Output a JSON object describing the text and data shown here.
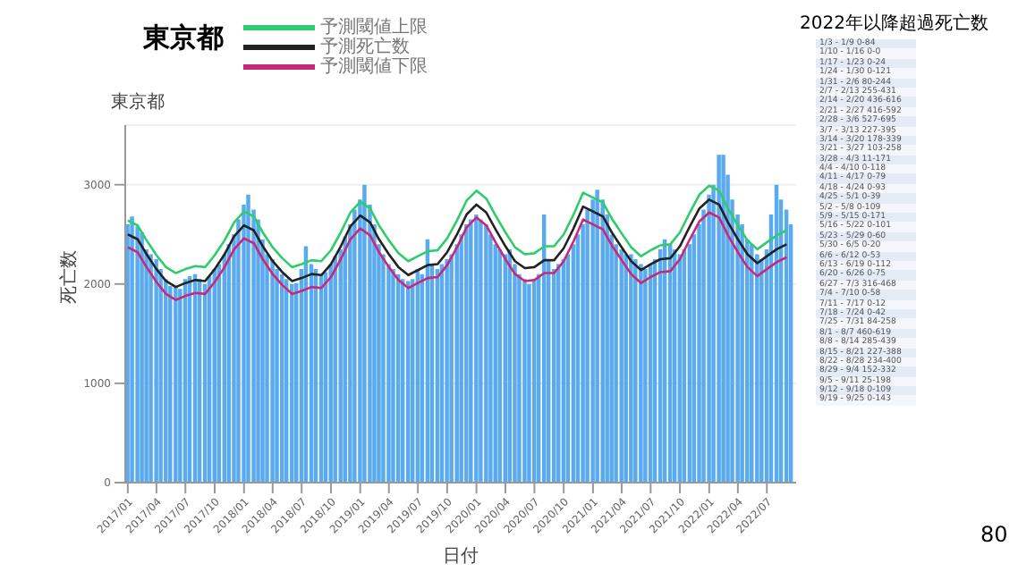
{
  "chart_data": {
    "type": "bar",
    "title": "東京都",
    "subtitle": "東京都",
    "xlabel": "日付",
    "ylabel": "死亡数",
    "xlim": [
      "2016-12-24",
      "2022-10-01"
    ],
    "xticks": [
      {
        "value": "2017-01-01",
        "label": "2017/01"
      },
      {
        "value": "2017-04-01",
        "label": "2017/04"
      },
      {
        "value": "2017-07-01",
        "label": "2017/07"
      },
      {
        "value": "2017-10-01",
        "label": "2017/10"
      },
      {
        "value": "2018-01-01",
        "label": "2018/01"
      },
      {
        "value": "2018-04-01",
        "label": "2018/04"
      },
      {
        "value": "2018-07-01",
        "label": "2018/07"
      },
      {
        "value": "2018-10-01",
        "label": "2018/10"
      },
      {
        "value": "2019-01-01",
        "label": "2019/01"
      },
      {
        "value": "2019-04-01",
        "label": "2019/04"
      },
      {
        "value": "2019-07-01",
        "label": "2019/07"
      },
      {
        "value": "2019-10-01",
        "label": "2019/10"
      },
      {
        "value": "2020-01-01",
        "label": "2020/01"
      },
      {
        "value": "2020-04-01",
        "label": "2020/04"
      },
      {
        "value": "2020-07-01",
        "label": "2020/07"
      },
      {
        "value": "2020-10-01",
        "label": "2020/10"
      },
      {
        "value": "2021-01-01",
        "label": "2021/01"
      },
      {
        "value": "2021-04-01",
        "label": "2021/04"
      },
      {
        "value": "2021-07-01",
        "label": "2021/07"
      },
      {
        "value": "2021-10-01",
        "label": "2021/10"
      },
      {
        "value": "2022-01-01",
        "label": "2022/01"
      },
      {
        "value": "2022-04-01",
        "label": "2022/04"
      },
      {
        "value": "2022-07-01",
        "label": "2022/07"
      }
    ],
    "ylim": [
      0,
      3600
    ],
    "yticks": [
      0,
      1000,
      2000,
      3000
    ],
    "grid": "y",
    "legend": "top left",
    "series": [
      {
        "color": "#5aaaee",
        "x": [
          "2017-01-01",
          "2017-01-15",
          "2017-02-01",
          "2017-02-15",
          "2017-03-01",
          "2017-03-15",
          "2017-04-01",
          "2017-04-15",
          "2017-05-01",
          "2017-05-15",
          "2017-06-01",
          "2017-06-15",
          "2017-07-01",
          "2017-07-15",
          "2017-08-01",
          "2017-08-15",
          "2017-09-01",
          "2017-09-15",
          "2017-10-01",
          "2017-10-15",
          "2017-11-01",
          "2017-11-15",
          "2017-12-01",
          "2017-12-15",
          "2018-01-01",
          "2018-01-15",
          "2018-02-01",
          "2018-02-15",
          "2018-03-01",
          "2018-03-15",
          "2018-04-01",
          "2018-04-15",
          "2018-05-01",
          "2018-05-15",
          "2018-06-01",
          "2018-06-15",
          "2018-07-01",
          "2018-07-15",
          "2018-08-01",
          "2018-08-15",
          "2018-09-01",
          "2018-09-15",
          "2018-10-01",
          "2018-10-15",
          "2018-11-01",
          "2018-11-15",
          "2018-12-01",
          "2018-12-15",
          "2019-01-01",
          "2019-01-15",
          "2019-02-01",
          "2019-02-15",
          "2019-03-01",
          "2019-03-15",
          "2019-04-01",
          "2019-04-15",
          "2019-05-01",
          "2019-05-15",
          "2019-06-01",
          "2019-06-15",
          "2019-07-01",
          "2019-07-15",
          "2019-08-01",
          "2019-08-15",
          "2019-09-01",
          "2019-09-15",
          "2019-10-01",
          "2019-10-15",
          "2019-11-01",
          "2019-11-15",
          "2019-12-01",
          "2019-12-15",
          "2020-01-01",
          "2020-01-15",
          "2020-02-01",
          "2020-02-15",
          "2020-03-01",
          "2020-03-15",
          "2020-04-01",
          "2020-04-15",
          "2020-05-01",
          "2020-05-15",
          "2020-06-01",
          "2020-06-15",
          "2020-07-01",
          "2020-07-15",
          "2020-08-01",
          "2020-08-15",
          "2020-09-01",
          "2020-09-15",
          "2020-10-01",
          "2020-10-15",
          "2020-11-01",
          "2020-11-15",
          "2020-12-01",
          "2020-12-15",
          "2021-01-01",
          "2021-01-15",
          "2021-02-01",
          "2021-02-15",
          "2021-03-01",
          "2021-03-15",
          "2021-04-01",
          "2021-04-15",
          "2021-05-01",
          "2021-05-15",
          "2021-06-01",
          "2021-06-15",
          "2021-07-01",
          "2021-07-15",
          "2021-08-01",
          "2021-08-15",
          "2021-09-01",
          "2021-09-15",
          "2021-10-01",
          "2021-10-15",
          "2021-11-01",
          "2021-11-15",
          "2021-12-01",
          "2021-12-15",
          "2022-01-01",
          "2022-01-15",
          "2022-02-01",
          "2022-02-15",
          "2022-03-01",
          "2022-03-15",
          "2022-04-01",
          "2022-04-15",
          "2022-05-01",
          "2022-05-15",
          "2022-06-01",
          "2022-06-15",
          "2022-07-01",
          "2022-07-15",
          "2022-08-01",
          "2022-08-15",
          "2022-09-01",
          "2022-09-15"
        ],
        "values": [
          2600,
          2680,
          2580,
          2520,
          2350,
          2300,
          2250,
          2150,
          2050,
          1980,
          1970,
          1950,
          2050,
          2080,
          2100,
          2050,
          2000,
          2080,
          2150,
          2200,
          2300,
          2400,
          2500,
          2650,
          2800,
          2900,
          2750,
          2650,
          2450,
          2300,
          2250,
          2150,
          2100,
          2050,
          2000,
          2010,
          2150,
          2380,
          2200,
          2150,
          2100,
          2120,
          2200,
          2280,
          2350,
          2480,
          2600,
          2750,
          2850,
          3000,
          2800,
          2600,
          2400,
          2300,
          2200,
          2150,
          2100,
          2050,
          2030,
          2050,
          2150,
          2100,
          2450,
          2200,
          2150,
          2200,
          2250,
          2300,
          2400,
          2500,
          2600,
          2650,
          2700,
          2650,
          2600,
          2500,
          2400,
          2350,
          2300,
          2350,
          2200,
          2100,
          2050,
          2000,
          2050,
          2100,
          2700,
          2250,
          2150,
          2200,
          2250,
          2300,
          2400,
          2500,
          2600,
          2750,
          2850,
          2950,
          2850,
          2700,
          2500,
          2400,
          2350,
          2300,
          2300,
          2250,
          2200,
          2150,
          2200,
          2250,
          2350,
          2450,
          2400,
          2350,
          2300,
          2350,
          2400,
          2500,
          2600,
          2750,
          2900,
          3000,
          3300,
          3300,
          3100,
          2850,
          2700,
          2600,
          2450,
          2400,
          2300,
          2250,
          2350,
          2700,
          3000,
          2850,
          2750,
          2600
        ]
      },
      {
        "type": "line",
        "name": "予測閾値上限",
        "color": "#2ecc6a",
        "x": [
          "2017-01-01",
          "2017-02-01",
          "2017-03-01",
          "2017-04-01",
          "2017-05-01",
          "2017-06-01",
          "2017-07-01",
          "2017-08-01",
          "2017-09-01",
          "2017-10-01",
          "2017-11-01",
          "2017-12-01",
          "2018-01-01",
          "2018-02-01",
          "2018-03-01",
          "2018-04-01",
          "2018-05-01",
          "2018-06-01",
          "2018-07-01",
          "2018-08-01",
          "2018-09-01",
          "2018-10-01",
          "2018-11-01",
          "2018-12-01",
          "2019-01-01",
          "2019-02-01",
          "2019-03-01",
          "2019-04-01",
          "2019-05-01",
          "2019-06-01",
          "2019-07-01",
          "2019-08-01",
          "2019-09-01",
          "2019-10-01",
          "2019-11-01",
          "2019-12-01",
          "2020-01-01",
          "2020-02-01",
          "2020-03-01",
          "2020-04-01",
          "2020-05-01",
          "2020-06-01",
          "2020-07-01",
          "2020-08-01",
          "2020-09-01",
          "2020-10-01",
          "2020-11-01",
          "2020-12-01",
          "2021-01-01",
          "2021-02-01",
          "2021-03-01",
          "2021-04-01",
          "2021-05-01",
          "2021-06-01",
          "2021-07-01",
          "2021-08-01",
          "2021-09-01",
          "2021-10-01",
          "2021-11-01",
          "2021-12-01",
          "2022-01-01",
          "2022-02-01",
          "2022-03-01",
          "2022-04-01",
          "2022-05-01",
          "2022-06-01",
          "2022-07-01",
          "2022-08-01",
          "2022-09-01"
        ],
        "values": [
          2640,
          2590,
          2440,
          2290,
          2170,
          2110,
          2150,
          2180,
          2170,
          2290,
          2440,
          2620,
          2730,
          2680,
          2520,
          2370,
          2260,
          2170,
          2200,
          2240,
          2230,
          2340,
          2520,
          2720,
          2830,
          2760,
          2590,
          2440,
          2310,
          2230,
          2280,
          2330,
          2340,
          2460,
          2640,
          2840,
          2940,
          2860,
          2690,
          2520,
          2370,
          2300,
          2310,
          2380,
          2380,
          2500,
          2700,
          2920,
          2870,
          2820,
          2660,
          2510,
          2370,
          2280,
          2340,
          2390,
          2400,
          2520,
          2720,
          2900,
          2990,
          2940,
          2760,
          2590,
          2440,
          2350,
          2420,
          2490,
          2540
        ]
      },
      {
        "type": "line",
        "name": "予測死亡数",
        "color": "#222222",
        "x": [
          "2017-01-01",
          "2017-02-01",
          "2017-03-01",
          "2017-04-01",
          "2017-05-01",
          "2017-06-01",
          "2017-07-01",
          "2017-08-01",
          "2017-09-01",
          "2017-10-01",
          "2017-11-01",
          "2017-12-01",
          "2018-01-01",
          "2018-02-01",
          "2018-03-01",
          "2018-04-01",
          "2018-05-01",
          "2018-06-01",
          "2018-07-01",
          "2018-08-01",
          "2018-09-01",
          "2018-10-01",
          "2018-11-01",
          "2018-12-01",
          "2019-01-01",
          "2019-02-01",
          "2019-03-01",
          "2019-04-01",
          "2019-05-01",
          "2019-06-01",
          "2019-07-01",
          "2019-08-01",
          "2019-09-01",
          "2019-10-01",
          "2019-11-01",
          "2019-12-01",
          "2020-01-01",
          "2020-02-01",
          "2020-03-01",
          "2020-04-01",
          "2020-05-01",
          "2020-06-01",
          "2020-07-01",
          "2020-08-01",
          "2020-09-01",
          "2020-10-01",
          "2020-11-01",
          "2020-12-01",
          "2021-01-01",
          "2021-02-01",
          "2021-03-01",
          "2021-04-01",
          "2021-05-01",
          "2021-06-01",
          "2021-07-01",
          "2021-08-01",
          "2021-09-01",
          "2021-10-01",
          "2021-11-01",
          "2021-12-01",
          "2022-01-01",
          "2022-02-01",
          "2022-03-01",
          "2022-04-01",
          "2022-05-01",
          "2022-06-01",
          "2022-07-01",
          "2022-08-01",
          "2022-09-01"
        ],
        "values": [
          2500,
          2450,
          2300,
          2150,
          2030,
          1970,
          2010,
          2040,
          2030,
          2150,
          2300,
          2480,
          2590,
          2540,
          2380,
          2230,
          2120,
          2030,
          2060,
          2100,
          2090,
          2200,
          2380,
          2580,
          2690,
          2620,
          2450,
          2300,
          2170,
          2090,
          2140,
          2190,
          2200,
          2320,
          2500,
          2700,
          2800,
          2720,
          2550,
          2380,
          2230,
          2160,
          2170,
          2240,
          2240,
          2360,
          2560,
          2780,
          2730,
          2680,
          2520,
          2370,
          2230,
          2140,
          2200,
          2250,
          2260,
          2380,
          2580,
          2760,
          2850,
          2800,
          2620,
          2450,
          2300,
          2210,
          2280,
          2350,
          2400
        ]
      },
      {
        "type": "line",
        "name": "予測閾値下限",
        "color": "#c8287a",
        "x": [
          "2017-01-01",
          "2017-02-01",
          "2017-03-01",
          "2017-04-01",
          "2017-05-01",
          "2017-06-01",
          "2017-07-01",
          "2017-08-01",
          "2017-09-01",
          "2017-10-01",
          "2017-11-01",
          "2017-12-01",
          "2018-01-01",
          "2018-02-01",
          "2018-03-01",
          "2018-04-01",
          "2018-05-01",
          "2018-06-01",
          "2018-07-01",
          "2018-08-01",
          "2018-09-01",
          "2018-10-01",
          "2018-11-01",
          "2018-12-01",
          "2019-01-01",
          "2019-02-01",
          "2019-03-01",
          "2019-04-01",
          "2019-05-01",
          "2019-06-01",
          "2019-07-01",
          "2019-08-01",
          "2019-09-01",
          "2019-10-01",
          "2019-11-01",
          "2019-12-01",
          "2020-01-01",
          "2020-02-01",
          "2020-03-01",
          "2020-04-01",
          "2020-05-01",
          "2020-06-01",
          "2020-07-01",
          "2020-08-01",
          "2020-09-01",
          "2020-10-01",
          "2020-11-01",
          "2020-12-01",
          "2021-01-01",
          "2021-02-01",
          "2021-03-01",
          "2021-04-01",
          "2021-05-01",
          "2021-06-01",
          "2021-07-01",
          "2021-08-01",
          "2021-09-01",
          "2021-10-01",
          "2021-11-01",
          "2021-12-01",
          "2022-01-01",
          "2022-02-01",
          "2022-03-01",
          "2022-04-01",
          "2022-05-01",
          "2022-06-01",
          "2022-07-01",
          "2022-08-01",
          "2022-09-01"
        ],
        "values": [
          2370,
          2320,
          2170,
          2020,
          1900,
          1840,
          1880,
          1910,
          1900,
          2020,
          2170,
          2350,
          2460,
          2410,
          2250,
          2100,
          1990,
          1900,
          1930,
          1970,
          1960,
          2070,
          2250,
          2450,
          2560,
          2490,
          2320,
          2170,
          2040,
          1960,
          2010,
          2060,
          2070,
          2190,
          2370,
          2570,
          2670,
          2590,
          2420,
          2250,
          2100,
          2030,
          2040,
          2110,
          2110,
          2230,
          2430,
          2650,
          2600,
          2550,
          2390,
          2240,
          2100,
          2010,
          2070,
          2120,
          2130,
          2250,
          2450,
          2630,
          2720,
          2670,
          2490,
          2320,
          2170,
          2080,
          2150,
          2220,
          2270
        ]
      }
    ],
    "annotations": [
      "2022年以降超過死亡数",
      "1/3 - 1/9 0-84",
      "1/10 - 1/16 0-0",
      "1/17 - 1/23 0-24",
      "1/24 - 1/30 0-121",
      "1/31 - 2/6 80-244",
      "2/7 - 2/13 255-431",
      "2/14 - 2/20 436-616",
      "2/21 - 2/27 416-592",
      "2/28 - 3/6 527-695",
      "3/7 - 3/13 227-395",
      "3/14 - 3/20 178-339",
      "3/21 - 3/27 103-258",
      "3/28 - 4/3 11-171",
      "4/4 - 4/10 0-118",
      "4/11 - 4/17 0-79",
      "4/18 - 4/24 0-93",
      "4/25 - 5/1 0-39",
      "5/2 - 5/8 0-109",
      "5/9 - 5/15 0-171",
      "5/16 - 5/22 0-101",
      "5/23 - 5/29 0-60",
      "5/30 - 6/5 0-20",
      "6/6 - 6/12 0-53",
      "6/13 - 6/19 0-112",
      "6/20 - 6/26 0-75",
      "6/27 - 7/3 316-468",
      "7/4 - 7/10 0-58",
      "7/11 - 7/17 0-12",
      "7/18 - 7/24 0-42",
      "7/25 - 7/31 84-258",
      "8/1 - 8/7 460-619",
      "8/8 - 8/14 285-439",
      "8/15 - 8/21 227-388",
      "8/22 - 8/28 234-400",
      "8/29 - 9/4 152-332",
      "9/5 - 9/11 25-198",
      "9/12 - 9/18 0-109",
      "9/19 - 9/25 0-143",
      "80"
    ]
  }
}
